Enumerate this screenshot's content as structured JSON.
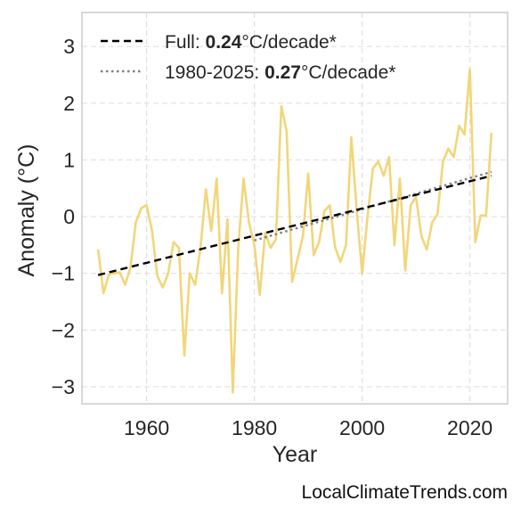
{
  "watermark": "LocalClimateTrends.com",
  "chart_data": {
    "type": "line",
    "title": "",
    "xlabel": "Year",
    "ylabel": "Anomaly (°C)",
    "xlim": [
      1948,
      2027
    ],
    "ylim": [
      -3.3,
      3.6
    ],
    "xticks": [
      1960,
      1980,
      2000,
      2020
    ],
    "yticks": [
      3,
      2,
      1,
      0,
      -1,
      -2,
      -3
    ],
    "ytick_labels": [
      "3",
      "2",
      "1",
      "0",
      "−1",
      "−2",
      "−3"
    ],
    "grid": true,
    "legend_position": "top-left",
    "colors": {
      "series": "#f1d67a",
      "full_trend": "#000000",
      "recent_trend": "#808080"
    },
    "series": [
      {
        "x": [
          1951,
          1952,
          1953,
          1954,
          1955,
          1956,
          1957,
          1958,
          1959,
          1960,
          1961,
          1962,
          1963,
          1964,
          1965,
          1966,
          1967,
          1968,
          1969,
          1970,
          1971,
          1972,
          1973,
          1974,
          1975,
          1976,
          1977,
          1978,
          1979,
          1980,
          1981,
          1982,
          1983,
          1984,
          1985,
          1986,
          1987,
          1988,
          1989,
          1990,
          1991,
          1992,
          1993,
          1994,
          1995,
          1996,
          1997,
          1998,
          1999,
          2000,
          2001,
          2002,
          2003,
          2004,
          2005,
          2006,
          2007,
          2008,
          2009,
          2010,
          2011,
          2012,
          2013,
          2014,
          2015,
          2016,
          2017,
          2018,
          2019,
          2020,
          2021,
          2022,
          2023,
          2024
        ],
        "values": [
          -0.58,
          -1.35,
          -1.02,
          -1.0,
          -0.98,
          -1.2,
          -0.9,
          -0.1,
          0.15,
          0.2,
          -0.25,
          -1.05,
          -1.25,
          -1.0,
          -0.45,
          -0.55,
          -2.45,
          -1.0,
          -1.2,
          -0.55,
          0.48,
          -0.25,
          0.67,
          -1.35,
          -0.05,
          -3.1,
          -0.55,
          0.67,
          -0.1,
          -0.5,
          -1.38,
          -0.28,
          -0.55,
          -0.4,
          1.95,
          1.5,
          -1.15,
          -0.75,
          -0.35,
          0.76,
          -0.68,
          -0.45,
          0.1,
          0.2,
          -0.55,
          -0.8,
          -0.5,
          1.4,
          0.1,
          -1.0,
          0.0,
          0.85,
          0.97,
          0.72,
          1.05,
          -0.5,
          0.67,
          -0.95,
          0.2,
          0.35,
          -0.35,
          -0.58,
          -0.1,
          0.05,
          0.97,
          1.2,
          1.05,
          1.6,
          1.45,
          2.6,
          -0.45,
          0.02,
          0.02,
          1.48
        ]
      },
      {
        "name": "Full",
        "kind": "trend",
        "x": [
          1951,
          2024
        ],
        "values": [
          -1.03,
          0.72
        ]
      },
      {
        "name": "1980-2025",
        "kind": "trend",
        "x": [
          1980,
          2024
        ],
        "values": [
          -0.42,
          0.79
        ]
      }
    ],
    "legend": [
      {
        "prefix": "Full: ",
        "value": "0.24",
        "suffix": "°C/decade*",
        "style": "dashed"
      },
      {
        "prefix": "1980-2025: ",
        "value": "0.27",
        "suffix": "°C/decade*",
        "style": "dotted"
      }
    ]
  }
}
